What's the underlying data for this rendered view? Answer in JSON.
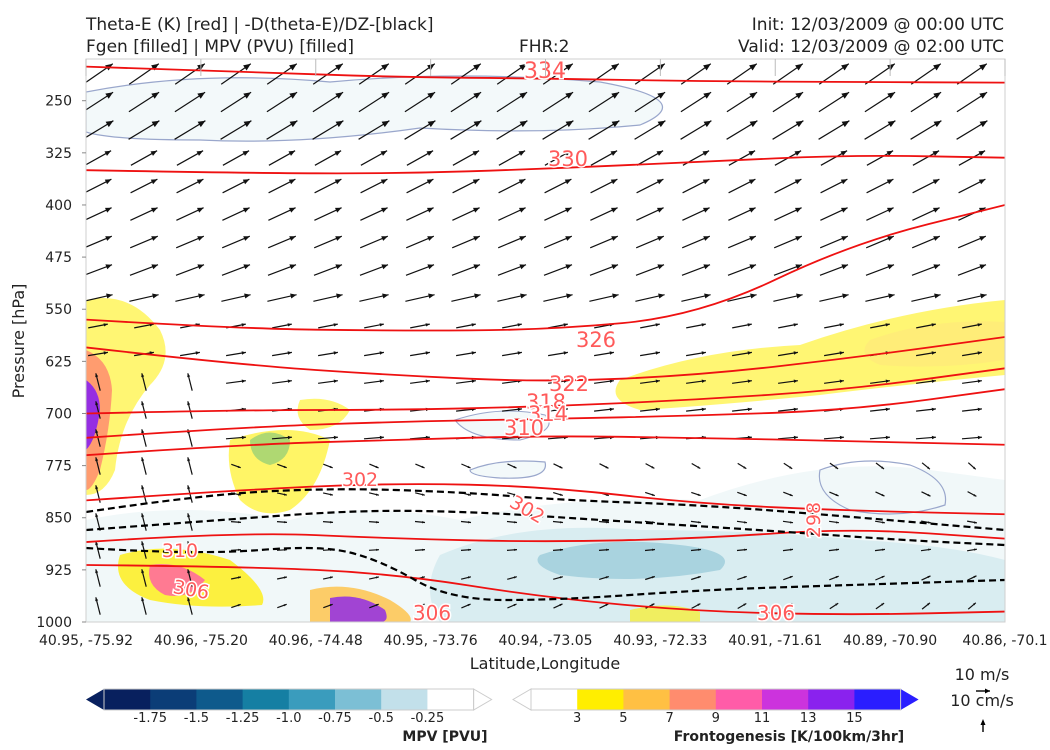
{
  "header": {
    "title_line1": "Theta-E (K) [red] | -D(theta-E)/DZ-[black]",
    "title_line2": "Fgen [filled] | MPV (PVU) [filled]",
    "fhr": "FHR:2",
    "init": "Init: 12/03/2009 @ 00:00 UTC",
    "valid": "Valid: 12/03/2009 @ 02:00 UTC"
  },
  "chart_data": {
    "type": "cross-section contour",
    "xlabel": "Latitude,Longitude",
    "ylabel": "Pressure [hPa]",
    "x_ticks": [
      "40.95, -75.92",
      "40.96, -75.20",
      "40.96, -74.48",
      "40.95, -73.76",
      "40.94, -73.05",
      "40.93, -72.33",
      "40.91, -71.61",
      "40.89, -70.90",
      "40.86, -70.1"
    ],
    "y_ticks": [
      250,
      325,
      400,
      475,
      550,
      625,
      700,
      775,
      850,
      925,
      1000
    ],
    "ylim": [
      1000,
      190
    ],
    "y_inverted": true,
    "theta_e_contours": [
      {
        "value": 334,
        "pressure": [
          201,
          208,
          216,
          218,
          222,
          223,
          224
        ]
      },
      {
        "value": 330,
        "pressure": [
          350,
          354,
          355,
          348,
          338,
          328,
          332
        ]
      },
      {
        "value": 326,
        "pressure": [
          565,
          578,
          581,
          580,
          560,
          455,
          400
        ]
      },
      {
        "value": 322,
        "pressure": [
          605,
          630,
          645,
          655,
          645,
          620,
          590
        ]
      },
      {
        "value": 318,
        "pressure": [
          700,
          695,
          695,
          690,
          680,
          665,
          635
        ]
      },
      {
        "value": 314,
        "pressure": [
          735,
          720,
          712,
          708,
          703,
          695,
          665
        ]
      },
      {
        "value": 310,
        "pressure": [
          760,
          745,
          738,
          732,
          735,
          740,
          745
        ]
      },
      {
        "value": 302,
        "pressure": [
          825,
          810,
          800,
          805,
          830,
          840,
          845
        ]
      },
      {
        "value": 306,
        "pressure": [
          918,
          920,
          930,
          965,
          985,
          990,
          985
        ]
      },
      {
        "value": 298,
        "pressure": [
          885,
          870,
          880,
          885,
          880,
          865,
          880
        ]
      }
    ],
    "contour_labels": [
      {
        "text": "334",
        "color": "#ff1a1a"
      },
      {
        "text": "330",
        "color": "#ff5a5a"
      },
      {
        "text": "326",
        "color": "#ff5a5a"
      },
      {
        "text": "322",
        "color": "#ff5a5a"
      },
      {
        "text": "318",
        "color": "#ff5a5a"
      },
      {
        "text": "314",
        "color": "#ff5a5a"
      },
      {
        "text": "310",
        "color": "#ff5a5a"
      },
      {
        "text": "302",
        "color": "#ff5a5a"
      },
      {
        "text": "302",
        "color": "#ff5a5a"
      },
      {
        "text": "298",
        "color": "#ff5a5a"
      },
      {
        "text": "310",
        "color": "#ff5a5a"
      },
      {
        "text": "306",
        "color": "#ff5a5a"
      },
      {
        "text": "306",
        "color": "#ff5a5a"
      },
      {
        "text": "306",
        "color": "#ff5a5a"
      }
    ],
    "stability_contours": {
      "style": "dashed",
      "color": "#000000",
      "count": 3
    },
    "mpv_colorbar": {
      "title": "MPV [PVU]",
      "ticks": [
        "-1.75",
        "-1.5",
        "-1.25",
        "-1.0",
        "-0.75",
        "-0.5",
        "-0.25"
      ],
      "colors": [
        "#08205e",
        "#0b3d77",
        "#0e5a8c",
        "#157fa3",
        "#3a9cbd",
        "#7cbfd5",
        "#c2e0ea",
        "#ffffff"
      ]
    },
    "fgen_colorbar": {
      "title": "Frontogenesis [K/100km/3hr]",
      "ticks": [
        "3",
        "5",
        "7",
        "9",
        "11",
        "13",
        "15"
      ],
      "colors": [
        "#ffffff",
        "#ffee00",
        "#ffc043",
        "#ff8c6e",
        "#ff5ca8",
        "#cc33dd",
        "#8a22ee",
        "#2a1eff"
      ]
    },
    "wind_reference": {
      "horizontal": "10 m/s",
      "vertical": "10 cm/s"
    }
  }
}
